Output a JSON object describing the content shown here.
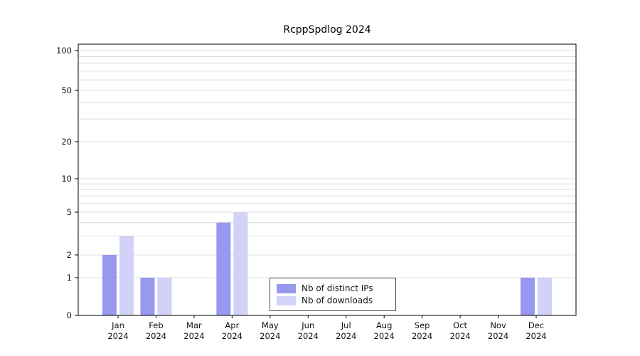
{
  "chart_data": {
    "type": "bar",
    "title": "RcppSpdlog 2024",
    "year": "2024",
    "categories": [
      "Jan",
      "Feb",
      "Mar",
      "Apr",
      "May",
      "Jun",
      "Jul",
      "Aug",
      "Sep",
      "Oct",
      "Nov",
      "Dec"
    ],
    "series": [
      {
        "name": "Nb of distinct IPs",
        "color": "#9898ee",
        "values": [
          2,
          1,
          0,
          4,
          0,
          0,
          0,
          0,
          0,
          0,
          0,
          1
        ]
      },
      {
        "name": "Nb of downloads",
        "color": "#d2d2f8",
        "values": [
          3,
          1,
          0,
          5,
          0,
          0,
          0,
          0,
          0,
          0,
          0,
          1
        ]
      }
    ],
    "yscale": "log-with-zero",
    "ylim": [
      0,
      100
    ],
    "yticks": [
      0,
      1,
      2,
      5,
      10,
      20,
      50,
      100
    ],
    "minor_gridlines": [
      3,
      4,
      6,
      7,
      8,
      9,
      30,
      40,
      60,
      70,
      80,
      90
    ],
    "grid": "horizontal",
    "grid_color": "#dcdcdc",
    "axis_color": "#000000",
    "legend_position": "bottom-center"
  }
}
